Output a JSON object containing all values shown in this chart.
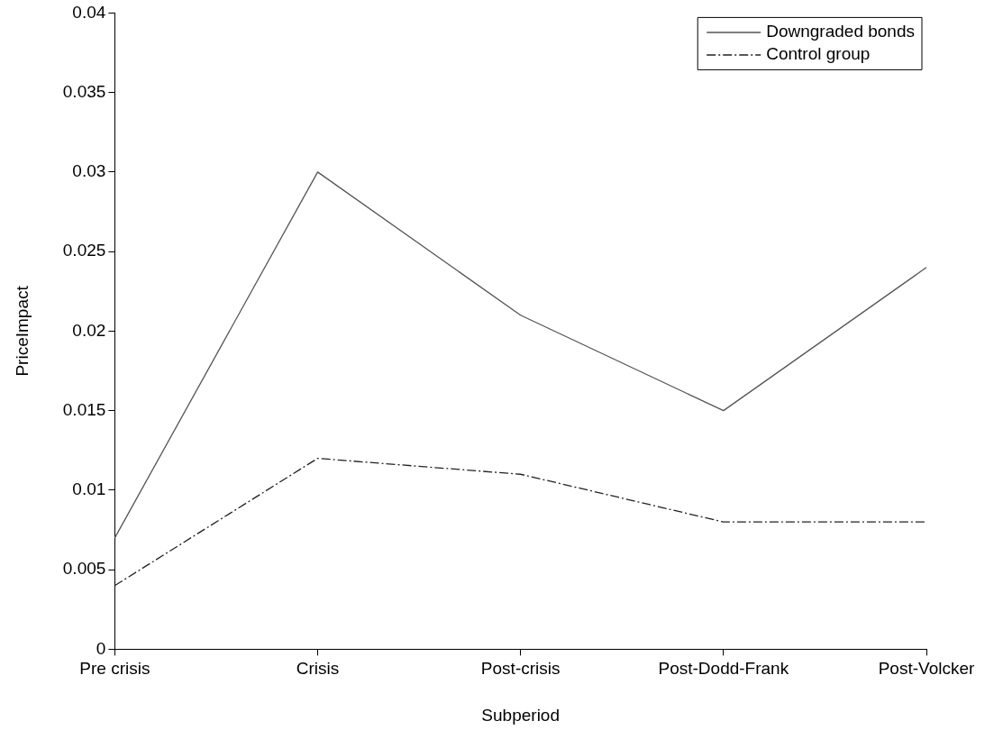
{
  "chart_data": {
    "type": "line",
    "xlabel": "Subperiod",
    "ylabel": "PriceImpact",
    "categories": [
      "Pre crisis",
      "Crisis",
      "Post-crisis",
      "Post-Dodd-Frank",
      "Post-Volcker"
    ],
    "series": [
      {
        "name": "Downgraded bonds",
        "color": "#555555",
        "values": [
          0.007,
          0.03,
          0.021,
          0.015,
          0.024
        ],
        "line_style": "solid"
      },
      {
        "name": "Control group",
        "color": "#222222",
        "values": [
          0.004,
          0.012,
          0.011,
          0.008,
          0.008
        ],
        "line_style": "dashed"
      }
    ],
    "ylim": [
      0,
      0.04
    ],
    "yticks": [
      0,
      0.005,
      0.01,
      0.015,
      0.02,
      0.025,
      0.03,
      0.035,
      0.04
    ],
    "grid": false,
    "legend": "top right",
    "marker": "none"
  }
}
